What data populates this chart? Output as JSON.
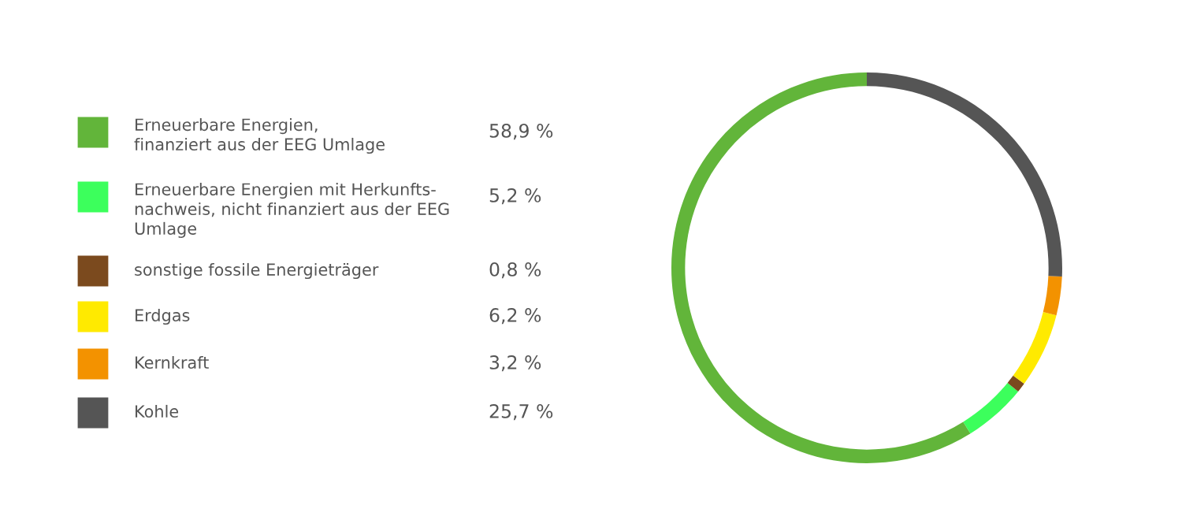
{
  "chart_data": {
    "type": "donut",
    "categories": [
      "Erneuerbare Energien,\nfinanziert aus der EEG Umlage",
      "Erneuerbare Energien mit Herkunfts-\nnachweis, nicht finanziert aus der EEG\nUmlage",
      "sonstige fossile Energieträger",
      "Erdgas",
      "Kernkraft",
      "Kohle"
    ],
    "values": [
      58.9,
      5.2,
      0.8,
      6.2,
      3.2,
      25.7
    ],
    "value_labels": [
      "58,9 %",
      "5,2 %",
      "0,8 %",
      "6,2 %",
      "3,2 %",
      "25,7 %"
    ],
    "colors": [
      "#62b53a",
      "#3cff5c",
      "#7b4a1e",
      "#ffea00",
      "#f39200",
      "#555555"
    ],
    "legend": "left"
  }
}
